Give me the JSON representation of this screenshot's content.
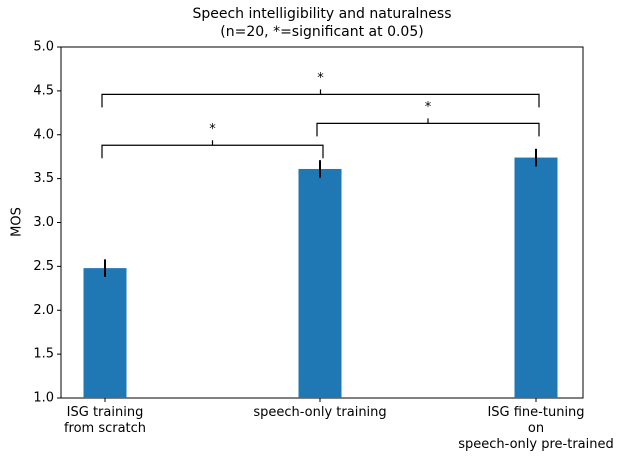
{
  "chart_data": {
    "type": "bar",
    "title": "Speech intelligibility and naturalness",
    "subtitle": "(n=20, *=significant at 0.05)",
    "y_label": "MOS",
    "categories": [
      "ISG training\nfrom scratch",
      "speech-only training",
      "ISG fine-tuning\non\nspeech-only pre-trained"
    ],
    "values": [
      2.48,
      3.61,
      3.74
    ],
    "errors": [
      0.1,
      0.1,
      0.1
    ],
    "color": "#1f77b4",
    "ylim": [
      1,
      5
    ],
    "yticks": [
      {
        "value": 1,
        "label": "1.0"
      },
      {
        "value": 1.5,
        "label": "1.5"
      },
      {
        "value": 2,
        "label": "2.0"
      },
      {
        "value": 2.5,
        "label": "2.5"
      },
      {
        "value": 3,
        "label": "3.0"
      },
      {
        "value": 3.5,
        "label": "3.5"
      },
      {
        "value": 4,
        "label": "4.0"
      },
      {
        "value": 4.5,
        "label": "4.5"
      },
      {
        "value": 5,
        "label": "5.0"
      }
    ],
    "grid": false,
    "annotations": [
      {
        "text": "*",
        "from": 0,
        "to": 1,
        "y": 3.88
      },
      {
        "text": "*",
        "from": 1,
        "to": 2,
        "y": 4.13
      },
      {
        "text": "*",
        "from": 0,
        "to": 2,
        "y": 4.46
      }
    ]
  }
}
